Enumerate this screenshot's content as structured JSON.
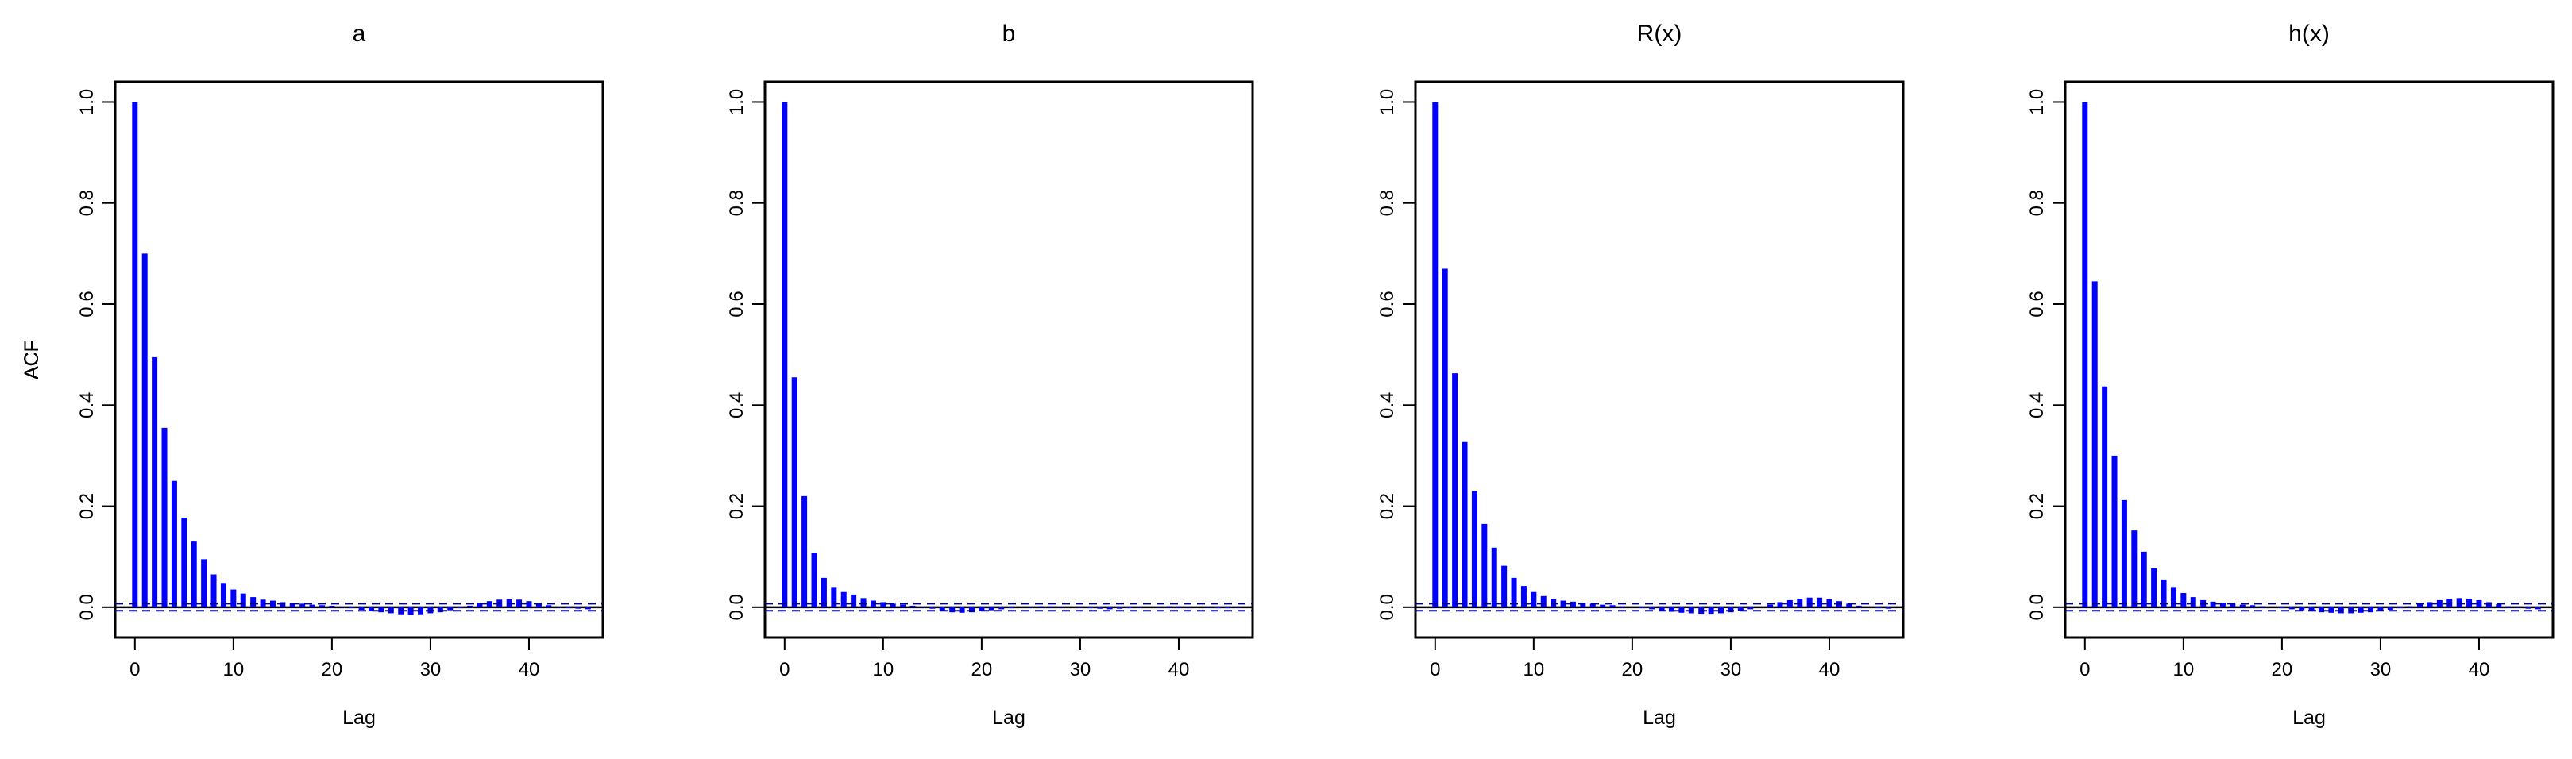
{
  "figure": {
    "bar_color": "#0000ff",
    "axis_color": "#000000",
    "ci_color": "#000080"
  },
  "chart_data": [
    {
      "type": "bar",
      "title": "a",
      "xlabel": "Lag",
      "ylabel": "ACF",
      "xlim": [
        -2,
        47.5
      ],
      "ylim": [
        -0.06,
        1.04
      ],
      "xticks": [
        0,
        10,
        20,
        30,
        40
      ],
      "xtick_labels": [
        "0",
        "10",
        "20",
        "30",
        "40"
      ],
      "yticks": [
        0.0,
        0.2,
        0.4,
        0.6,
        0.8,
        1.0
      ],
      "ytick_labels": [
        "0.0",
        "0.2",
        "0.4",
        "0.6",
        "0.8",
        "1.0"
      ],
      "ci_bounds": [
        0.007,
        -0.007
      ],
      "lags": [
        0,
        1,
        2,
        3,
        4,
        5,
        6,
        7,
        8,
        9,
        10,
        11,
        12,
        13,
        14,
        15,
        16,
        17,
        18,
        19,
        20,
        21,
        22,
        23,
        24,
        25,
        26,
        27,
        28,
        29,
        30,
        31,
        32,
        33,
        34,
        35,
        36,
        37,
        38,
        39,
        40,
        41,
        42,
        43,
        44,
        45,
        46
      ],
      "values": [
        1.0,
        0.7,
        0.495,
        0.355,
        0.25,
        0.177,
        0.13,
        0.095,
        0.065,
        0.048,
        0.035,
        0.027,
        0.02,
        0.015,
        0.013,
        0.01,
        0.008,
        0.007,
        0.005,
        0.004,
        0.003,
        0.001,
        -0.002,
        -0.005,
        -0.008,
        -0.01,
        -0.012,
        -0.014,
        -0.015,
        -0.014,
        -0.012,
        -0.01,
        -0.006,
        -0.002,
        0.003,
        0.008,
        0.012,
        0.015,
        0.016,
        0.015,
        0.012,
        0.008,
        0.004,
        0.001,
        -0.002,
        -0.003,
        -0.004
      ]
    },
    {
      "type": "bar",
      "title": "b",
      "xlabel": "Lag",
      "ylabel": "ACF",
      "xlim": [
        -2,
        47.5
      ],
      "ylim": [
        -0.06,
        1.04
      ],
      "xticks": [
        0,
        10,
        20,
        30,
        40
      ],
      "xtick_labels": [
        "0",
        "10",
        "20",
        "30",
        "40"
      ],
      "yticks": [
        0.0,
        0.2,
        0.4,
        0.6,
        0.8,
        1.0
      ],
      "ytick_labels": [
        "0.0",
        "0.2",
        "0.4",
        "0.6",
        "0.8",
        "1.0"
      ],
      "ci_bounds": [
        0.007,
        -0.007
      ],
      "lags": [
        0,
        1,
        2,
        3,
        4,
        5,
        6,
        7,
        8,
        9,
        10,
        11,
        12,
        13,
        14,
        15,
        16,
        17,
        18,
        19,
        20,
        21,
        22,
        23,
        24,
        25,
        26,
        27,
        28,
        29,
        30,
        31,
        32,
        33,
        34,
        35,
        36,
        37,
        38,
        39,
        40,
        41,
        42,
        43,
        44,
        45,
        46
      ],
      "values": [
        1.0,
        0.455,
        0.22,
        0.108,
        0.058,
        0.04,
        0.03,
        0.025,
        0.018,
        0.013,
        0.01,
        0.007,
        0.005,
        0.003,
        0.001,
        -0.003,
        -0.007,
        -0.01,
        -0.011,
        -0.01,
        -0.008,
        -0.006,
        -0.004,
        -0.002,
        0.0,
        0.001,
        0.002,
        0.002,
        0.001,
        0.0,
        -0.001,
        -0.002,
        -0.003,
        -0.004,
        -0.003,
        -0.002,
        -0.001,
        0.0,
        0.001,
        0.002,
        0.002,
        0.001,
        0.0,
        -0.001,
        -0.002,
        -0.002,
        -0.001
      ]
    },
    {
      "type": "bar",
      "title": "R(x)",
      "xlabel": "Lag",
      "ylabel": "ACF",
      "xlim": [
        -2,
        47.5
      ],
      "ylim": [
        -0.06,
        1.04
      ],
      "xticks": [
        0,
        10,
        20,
        30,
        40
      ],
      "xtick_labels": [
        "0",
        "10",
        "20",
        "30",
        "40"
      ],
      "yticks": [
        0.0,
        0.2,
        0.4,
        0.6,
        0.8,
        1.0
      ],
      "ytick_labels": [
        "0.0",
        "0.2",
        "0.4",
        "0.6",
        "0.8",
        "1.0"
      ],
      "ci_bounds": [
        0.007,
        -0.007
      ],
      "lags": [
        0,
        1,
        2,
        3,
        4,
        5,
        6,
        7,
        8,
        9,
        10,
        11,
        12,
        13,
        14,
        15,
        16,
        17,
        18,
        19,
        20,
        21,
        22,
        23,
        24,
        25,
        26,
        27,
        28,
        29,
        30,
        31,
        32,
        33,
        34,
        35,
        36,
        37,
        38,
        39,
        40,
        41,
        42,
        43,
        44,
        45,
        46
      ],
      "values": [
        1.0,
        0.67,
        0.463,
        0.327,
        0.23,
        0.165,
        0.118,
        0.082,
        0.058,
        0.042,
        0.03,
        0.022,
        0.016,
        0.013,
        0.011,
        0.009,
        0.007,
        0.005,
        0.004,
        0.002,
        0.0,
        -0.002,
        -0.004,
        -0.007,
        -0.009,
        -0.011,
        -0.012,
        -0.013,
        -0.013,
        -0.012,
        -0.01,
        -0.007,
        -0.004,
        0.0,
        0.005,
        0.01,
        0.014,
        0.017,
        0.019,
        0.019,
        0.016,
        0.012,
        0.007,
        0.003,
        0.0,
        -0.002,
        -0.003
      ]
    },
    {
      "type": "bar",
      "title": "h(x)",
      "xlabel": "Lag",
      "ylabel": "ACF",
      "xlim": [
        -2,
        47.5
      ],
      "ylim": [
        -0.06,
        1.04
      ],
      "xticks": [
        0,
        10,
        20,
        30,
        40
      ],
      "xtick_labels": [
        "0",
        "10",
        "20",
        "30",
        "40"
      ],
      "yticks": [
        0.0,
        0.2,
        0.4,
        0.6,
        0.8,
        1.0
      ],
      "ytick_labels": [
        "0.0",
        "0.2",
        "0.4",
        "0.6",
        "0.8",
        "1.0"
      ],
      "ci_bounds": [
        0.007,
        -0.007
      ],
      "lags": [
        0,
        1,
        2,
        3,
        4,
        5,
        6,
        7,
        8,
        9,
        10,
        11,
        12,
        13,
        14,
        15,
        16,
        17,
        18,
        19,
        20,
        21,
        22,
        23,
        24,
        25,
        26,
        27,
        28,
        29,
        30,
        31,
        32,
        33,
        34,
        35,
        36,
        37,
        38,
        39,
        40,
        41,
        42,
        43,
        44,
        45,
        46
      ],
      "values": [
        1.0,
        0.645,
        0.437,
        0.3,
        0.212,
        0.152,
        0.11,
        0.077,
        0.055,
        0.04,
        0.028,
        0.02,
        0.014,
        0.011,
        0.009,
        0.007,
        0.005,
        0.004,
        0.002,
        0.0,
        -0.002,
        -0.004,
        -0.006,
        -0.008,
        -0.01,
        -0.011,
        -0.012,
        -0.012,
        -0.011,
        -0.01,
        -0.008,
        -0.005,
        -0.002,
        0.002,
        0.006,
        0.01,
        0.014,
        0.017,
        0.018,
        0.017,
        0.014,
        0.01,
        0.006,
        0.002,
        -0.001,
        -0.003,
        -0.004
      ]
    }
  ]
}
